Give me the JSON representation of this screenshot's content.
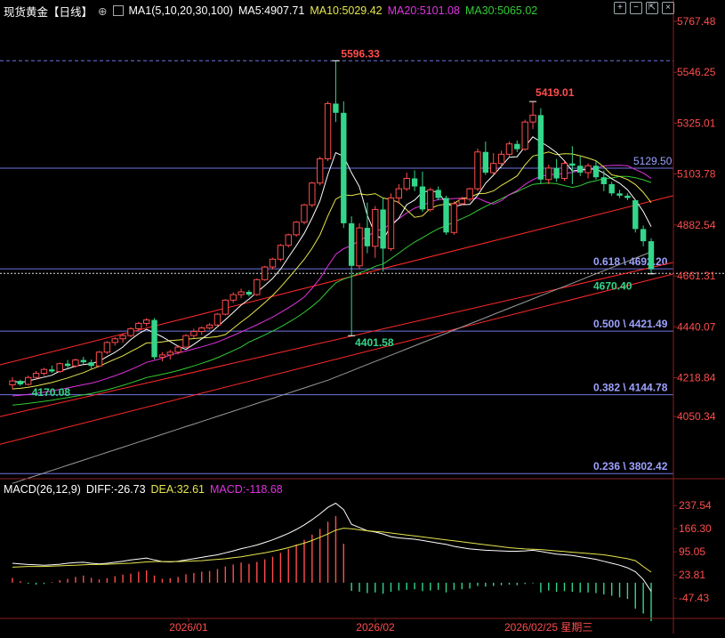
{
  "header": {
    "symbol": "现货黄金【日线】",
    "ma_label": "MA1(5,10,20,30,100)",
    "ma5": "MA5:4907.71",
    "ma10": "MA10:5029.42",
    "ma20": "MA20:5101.08",
    "ma30": "MA30:5065.02"
  },
  "macd_header": {
    "label": "MACD(26,12,9)",
    "diff": "DIFF:-26.73",
    "dea": "DEA:32.61",
    "macd": "MACD:-118.68"
  },
  "colors": {
    "up": "#ff4d4d",
    "down": "#33d68a",
    "ma5": "#ffffff",
    "ma10": "#e6e64d",
    "ma20": "#e033e0",
    "ma30": "#33cc33",
    "ma100": "#9a9a9a",
    "fib": "#6f74e0",
    "trend": "#ff2a2a",
    "axis_text": "#ff4d4d"
  },
  "icons": [
    "eye-icon",
    "settings-icon",
    "plus-icon",
    "minus-icon",
    "expand-icon",
    "close-icon"
  ],
  "chart_data": {
    "type": "candlestick",
    "price_axis_ticks": [
      "5767.48",
      "5546.25",
      "5325.01",
      "5103.78",
      "4882.54",
      "4661.31",
      "4440.07",
      "4218.84",
      "4050.34"
    ],
    "macd_axis_ticks": [
      "237.54",
      "166.30",
      "95.05",
      "23.81",
      "-47.43"
    ],
    "x_ticks": [
      "2026/01",
      "2026/02",
      "2026/02/25 星期三"
    ],
    "fib_levels": [
      {
        "label": "0.618 \\ 4692.20",
        "value": 4692.2
      },
      {
        "label": "0.500 \\ 4421.49",
        "value": 4421.49
      },
      {
        "label": "0.382 \\ 4144.78",
        "value": 4144.78
      },
      {
        "label": "0.236 \\ 3802.42",
        "value": 3802.42
      }
    ],
    "hline": {
      "label": "5129.50",
      "value": 5129.5
    },
    "dashed_high": 5596.33,
    "current_price": 4672,
    "annotations": [
      "5596.33",
      "5419.01",
      "4401.58",
      "4170.08",
      "4670.40"
    ],
    "candles": [
      [
        4188,
        4222,
        4170,
        4205
      ],
      [
        4205,
        4210,
        4183,
        4190
      ],
      [
        4190,
        4228,
        4185,
        4220
      ],
      [
        4220,
        4248,
        4212,
        4238
      ],
      [
        4238,
        4262,
        4228,
        4255
      ],
      [
        4255,
        4272,
        4240,
        4246
      ],
      [
        4246,
        4285,
        4240,
        4280
      ],
      [
        4280,
        4296,
        4262,
        4270
      ],
      [
        4270,
        4302,
        4262,
        4296
      ],
      [
        4296,
        4310,
        4278,
        4286
      ],
      [
        4286,
        4298,
        4258,
        4270
      ],
      [
        4270,
        4335,
        4265,
        4330
      ],
      [
        4330,
        4378,
        4322,
        4372
      ],
      [
        4372,
        4395,
        4358,
        4388
      ],
      [
        4388,
        4412,
        4372,
        4402
      ],
      [
        4402,
        4438,
        4395,
        4432
      ],
      [
        4432,
        4462,
        4425,
        4455
      ],
      [
        4455,
        4478,
        4442,
        4470
      ],
      [
        4470,
        4478,
        4298,
        4308
      ],
      [
        4308,
        4330,
        4290,
        4318
      ],
      [
        4318,
        4340,
        4298,
        4330
      ],
      [
        4330,
        4360,
        4320,
        4352
      ],
      [
        4352,
        4408,
        4348,
        4402
      ],
      [
        4402,
        4432,
        4390,
        4420
      ],
      [
        4420,
        4442,
        4405,
        4435
      ],
      [
        4435,
        4456,
        4428,
        4448
      ],
      [
        4448,
        4500,
        4440,
        4495
      ],
      [
        4495,
        4560,
        4490,
        4556
      ],
      [
        4556,
        4590,
        4545,
        4580
      ],
      [
        4580,
        4606,
        4565,
        4592
      ],
      [
        4592,
        4600,
        4572,
        4580
      ],
      [
        4580,
        4650,
        4575,
        4645
      ],
      [
        4645,
        4705,
        4640,
        4700
      ],
      [
        4700,
        4740,
        4690,
        4734
      ],
      [
        4734,
        4800,
        4725,
        4794
      ],
      [
        4794,
        4845,
        4785,
        4840
      ],
      [
        4840,
        4900,
        4832,
        4895
      ],
      [
        4895,
        4975,
        4885,
        4970
      ],
      [
        4970,
        5070,
        4960,
        5065
      ],
      [
        5065,
        5180,
        5055,
        5170
      ],
      [
        5170,
        5420,
        5160,
        5410
      ],
      [
        5410,
        5596,
        5330,
        5370
      ],
      [
        5370,
        5420,
        4870,
        4890
      ],
      [
        4890,
        4920,
        4401,
        4705
      ],
      [
        4705,
        4890,
        4690,
        4870
      ],
      [
        4870,
        4980,
        4760,
        4790
      ],
      [
        4790,
        4965,
        4740,
        4950
      ],
      [
        4950,
        5000,
        4680,
        4780
      ],
      [
        4780,
        5020,
        4770,
        5000
      ],
      [
        5000,
        5060,
        4975,
        5040
      ],
      [
        5040,
        5110,
        5030,
        5085
      ],
      [
        5085,
        5120,
        5030,
        5050
      ],
      [
        5050,
        5115,
        4940,
        4950
      ],
      [
        4950,
        5045,
        4940,
        5035
      ],
      [
        5035,
        5050,
        4990,
        5000
      ],
      [
        5000,
        5010,
        4840,
        4850
      ],
      [
        4850,
        4985,
        4840,
        4975
      ],
      [
        4975,
        5005,
        4970,
        4995
      ],
      [
        4995,
        5045,
        4985,
        5040
      ],
      [
        5040,
        5215,
        5030,
        5200
      ],
      [
        5200,
        5245,
        5100,
        5110
      ],
      [
        5110,
        5195,
        5100,
        5150
      ],
      [
        5150,
        5205,
        5130,
        5190
      ],
      [
        5190,
        5245,
        5180,
        5235
      ],
      [
        5235,
        5250,
        5200,
        5212
      ],
      [
        5212,
        5340,
        5205,
        5330
      ],
      [
        5330,
        5419,
        5300,
        5360
      ],
      [
        5360,
        5390,
        5060,
        5080
      ],
      [
        5080,
        5145,
        5060,
        5130
      ],
      [
        5130,
        5170,
        5070,
        5085
      ],
      [
        5085,
        5160,
        5075,
        5150
      ],
      [
        5150,
        5225,
        5060,
        5140
      ],
      [
        5140,
        5180,
        5095,
        5110
      ],
      [
        5110,
        5150,
        5085,
        5140
      ],
      [
        5140,
        5160,
        5080,
        5090
      ],
      [
        5090,
        5120,
        5030,
        5060
      ],
      [
        5060,
        5070,
        5010,
        5020
      ],
      [
        5020,
        5035,
        5000,
        5010
      ],
      [
        5010,
        5020,
        4990,
        5000
      ],
      [
        4990,
        4995,
        4850,
        4865
      ],
      [
        4865,
        4880,
        4790,
        4812
      ],
      [
        4812,
        4825,
        4672,
        4690
      ]
    ],
    "macd_hist": [
      15,
      5,
      -3,
      -6,
      -4,
      2,
      8,
      12,
      18,
      22,
      15,
      10,
      14,
      20,
      25,
      28,
      34,
      38,
      22,
      12,
      14,
      18,
      26,
      30,
      34,
      36,
      42,
      50,
      56,
      62,
      58,
      64,
      72,
      80,
      92,
      104,
      118,
      132,
      148,
      166,
      188,
      205,
      120,
      -25,
      -28,
      -32,
      -30,
      -34,
      -28,
      -24,
      -22,
      -20,
      -26,
      -24,
      -22,
      -30,
      -22,
      -20,
      -18,
      -10,
      -12,
      -10,
      -8,
      -6,
      -8,
      -4,
      -2,
      -30,
      -24,
      -28,
      -26,
      -28,
      -30,
      -30,
      -32,
      -36,
      -40,
      -45,
      -50,
      -80,
      -95,
      -118.68
    ],
    "diff": [
      60,
      58,
      56,
      55,
      54,
      55,
      57,
      60,
      62,
      63,
      60,
      58,
      60,
      63,
      66,
      70,
      73,
      76,
      70,
      65,
      64,
      66,
      70,
      74,
      78,
      82,
      86,
      92,
      98,
      105,
      110,
      116,
      124,
      132,
      142,
      152,
      164,
      178,
      194,
      212,
      232,
      245,
      225,
      180,
      170,
      160,
      156,
      150,
      142,
      138,
      136,
      134,
      130,
      126,
      122,
      118,
      112,
      108,
      104,
      102,
      100,
      99,
      98,
      97,
      97,
      98,
      100,
      96,
      92,
      88,
      86,
      84,
      80,
      76,
      72,
      66,
      60,
      54,
      46,
      34,
      10,
      -26.73
    ],
    "dea": [
      48,
      49,
      50,
      50,
      50,
      51,
      52,
      53,
      54,
      55,
      56,
      56,
      57,
      58,
      59,
      60,
      62,
      64,
      65,
      65,
      65,
      65,
      66,
      67,
      68,
      70,
      72,
      74,
      77,
      80,
      84,
      88,
      92,
      97,
      102,
      108,
      115,
      122,
      130,
      140,
      150,
      162,
      168,
      166,
      163,
      160,
      158,
      156,
      153,
      150,
      147,
      144,
      141,
      138,
      135,
      132,
      129,
      126,
      123,
      120,
      117,
      114,
      111,
      108,
      106,
      104,
      103,
      102,
      100,
      98,
      96,
      94,
      92,
      90,
      88,
      86,
      82,
      78,
      74,
      68,
      50,
      32.61
    ]
  }
}
